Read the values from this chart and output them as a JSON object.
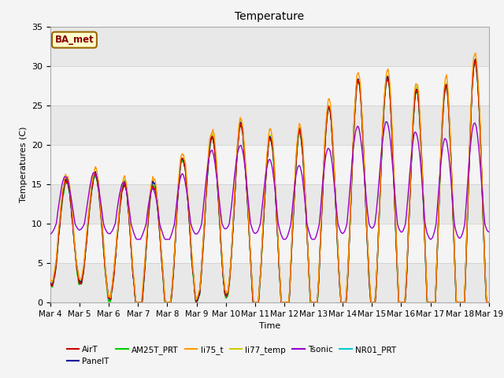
{
  "title": "Temperature",
  "xlabel": "Time",
  "ylabel": "Temperatures (C)",
  "ylim": [
    0,
    35
  ],
  "annotation": "BA_met",
  "x_tick_labels": [
    "Mar 4",
    "Mar 5",
    "Mar 6",
    "Mar 7",
    "Mar 8",
    "Mar 9",
    "Mar 10",
    "Mar 11",
    "Mar 12",
    "Mar 13",
    "Mar 14",
    "Mar 15",
    "Mar 16",
    "Mar 17",
    "Mar 18",
    "Mar 19"
  ],
  "legend_entries": [
    "AirT",
    "PanelT",
    "AM25T_PRT",
    "li75_t",
    "li77_temp",
    "Tsonic",
    "NR01_PRT"
  ],
  "legend_colors": [
    "#cc0000",
    "#000099",
    "#00cc00",
    "#ff9900",
    "#cccc00",
    "#9900cc",
    "#00cccc"
  ],
  "n_points": 1440,
  "figure_bg": "#f4f4f4",
  "plot_bg": "#f4f4f4",
  "band_colors": [
    "#e8e8e8",
    "#f4f4f4"
  ],
  "grid_line_color": "#cccccc"
}
